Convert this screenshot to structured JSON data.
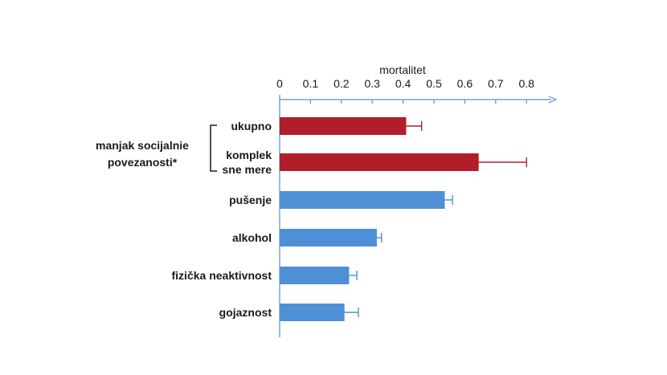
{
  "chart_data": {
    "type": "bar",
    "orientation": "horizontal",
    "title": "",
    "xlabel": "mortalitet",
    "ylabel": "",
    "xlim": [
      0,
      0.85
    ],
    "x_ticks": [
      "0",
      "0.1",
      "0.2",
      "0.3",
      "0.4",
      "0.5",
      "0.6",
      "0.7",
      "0.8"
    ],
    "grid": false,
    "legend": "none",
    "categories": [
      {
        "label": [
          "ukupno"
        ],
        "value": 0.41,
        "error": 0.05,
        "color": "#b01e2a",
        "group": "social"
      },
      {
        "label": [
          "komplek",
          "sne mere"
        ],
        "value": 0.645,
        "error": 0.155,
        "color": "#b01e2a",
        "group": "social"
      },
      {
        "label": [
          "pušenje"
        ],
        "value": 0.535,
        "error": 0.025,
        "color": "#4f8fd6",
        "group": ""
      },
      {
        "label": [
          "alkohol"
        ],
        "value": 0.315,
        "error": 0.015,
        "color": "#4f8fd6",
        "group": ""
      },
      {
        "label": [
          "fizička neaktivnost"
        ],
        "value": 0.225,
        "error": 0.025,
        "color": "#4f8fd6",
        "group": ""
      },
      {
        "label": [
          "gojaznost"
        ],
        "value": 0.21,
        "error": 0.045,
        "color": "#4f8fd6",
        "group": ""
      }
    ],
    "group_annotation": {
      "lines": [
        "manjak socijalnie",
        "povezanosti*"
      ],
      "group": "social"
    }
  }
}
